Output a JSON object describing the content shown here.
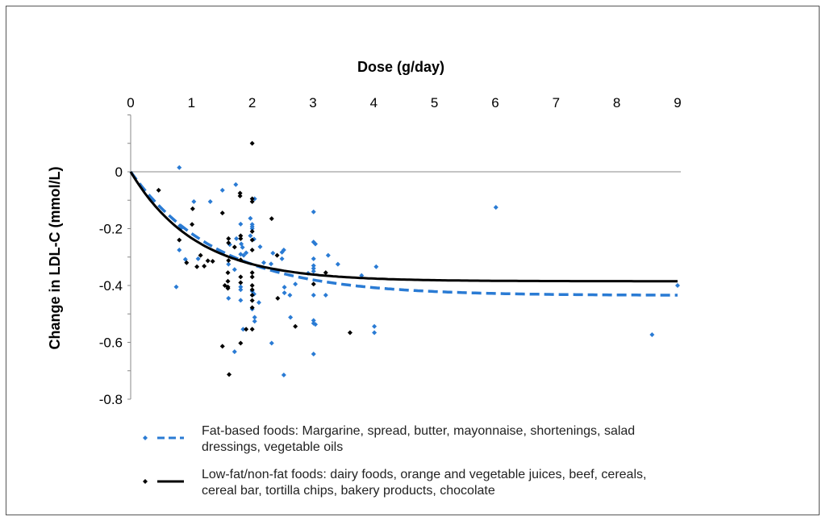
{
  "chart_data": {
    "type": "scatter",
    "xlabel": "Dose (g/day)",
    "ylabel": "Change in LDL-C (mmol/L)",
    "xlim": [
      0,
      9
    ],
    "ylim": [
      -0.8,
      0.2
    ],
    "x_ticks": [
      "0",
      "1",
      "2",
      "3",
      "4",
      "5",
      "6",
      "7",
      "8",
      "9"
    ],
    "y_ticks": [
      {
        "v": 0,
        "label": "0"
      },
      {
        "v": -0.2,
        "label": "-0.2"
      },
      {
        "v": -0.4,
        "label": "-0.4"
      },
      {
        "v": -0.6,
        "label": "-0.6"
      },
      {
        "v": -0.8,
        "label": "-0.8"
      }
    ],
    "x_axis_position": "top",
    "grid": false,
    "legend_position": "bottom",
    "series": [
      {
        "name": "Fat-based foods: Margarine, spread, butter, mayonnaise, shortenings, salad dressings, vegetable oils",
        "legend_lines": [
          "Fat-based foods: Margarine, spread, butter, mayonnaise, shortenings, salad",
          "dressings, vegetable oils"
        ],
        "color": "#2a7bd4",
        "curve_style": "dashed",
        "curve": {
          "plateau": -0.435,
          "rate": 0.69
        },
        "points": [
          [
            0.8,
            0.015
          ],
          [
            1.73,
            -0.045
          ],
          [
            1.51,
            -0.065
          ],
          [
            1.04,
            -0.105
          ],
          [
            1.31,
            -0.105
          ],
          [
            2.04,
            -0.095
          ],
          [
            1.97,
            -0.164
          ],
          [
            1.81,
            -0.184
          ],
          [
            2.0,
            -0.185
          ],
          [
            2.0,
            -0.193
          ],
          [
            2.0,
            -0.2
          ],
          [
            0.81,
            -0.19
          ],
          [
            0.82,
            -0.2
          ],
          [
            1.74,
            -0.235
          ],
          [
            1.63,
            -0.256
          ],
          [
            1.82,
            -0.254
          ],
          [
            1.84,
            -0.266
          ],
          [
            1.9,
            -0.285
          ],
          [
            1.86,
            -0.294
          ],
          [
            1.97,
            -0.225
          ],
          [
            2.03,
            -0.237
          ],
          [
            2.13,
            -0.264
          ],
          [
            0.8,
            -0.275
          ],
          [
            0.9,
            -0.308
          ],
          [
            1.11,
            -0.306
          ],
          [
            1.81,
            -0.29
          ],
          [
            1.61,
            -0.325
          ],
          [
            1.71,
            -0.344
          ],
          [
            2.19,
            -0.32
          ],
          [
            2.31,
            -0.324
          ],
          [
            2.34,
            -0.286
          ],
          [
            0.75,
            -0.405
          ],
          [
            1.81,
            -0.405
          ],
          [
            1.81,
            -0.415
          ],
          [
            2.0,
            -0.42
          ],
          [
            2.03,
            -0.43
          ],
          [
            2.11,
            -0.46
          ],
          [
            1.61,
            -0.445
          ],
          [
            1.81,
            -0.452
          ],
          [
            2.0,
            -0.483
          ],
          [
            2.04,
            -0.512
          ],
          [
            2.04,
            -0.526
          ],
          [
            1.85,
            -0.554
          ],
          [
            2.32,
            -0.603
          ],
          [
            1.71,
            -0.633
          ],
          [
            3.01,
            -0.141
          ],
          [
            3.01,
            -0.247
          ],
          [
            3.04,
            -0.254
          ],
          [
            2.52,
            -0.275
          ],
          [
            2.49,
            -0.283
          ],
          [
            2.49,
            -0.306
          ],
          [
            3.01,
            -0.306
          ],
          [
            3.25,
            -0.294
          ],
          [
            3.41,
            -0.325
          ],
          [
            3.01,
            -0.33
          ],
          [
            3.01,
            -0.34
          ],
          [
            3.01,
            -0.35
          ],
          [
            2.92,
            -0.357
          ],
          [
            4.04,
            -0.334
          ],
          [
            3.8,
            -0.365
          ],
          [
            2.71,
            -0.395
          ],
          [
            2.53,
            -0.406
          ],
          [
            2.53,
            -0.426
          ],
          [
            2.62,
            -0.434
          ],
          [
            3.01,
            -0.434
          ],
          [
            3.21,
            -0.434
          ],
          [
            2.63,
            -0.512
          ],
          [
            3.01,
            -0.523
          ],
          [
            3.01,
            -0.533
          ],
          [
            3.04,
            -0.537
          ],
          [
            4.01,
            -0.544
          ],
          [
            4.01,
            -0.566
          ],
          [
            3.01,
            -0.641
          ],
          [
            2.52,
            -0.715
          ],
          [
            6.01,
            -0.125
          ],
          [
            8.58,
            -0.573
          ],
          [
            9.0,
            -0.4
          ]
        ]
      },
      {
        "name": "Low-fat/non-fat foods: dairy foods, orange and vegetable juices, beef, cereals, cereal bar, tortilla chips, bakery products, chocolate",
        "legend_lines": [
          "Low-fat/non-fat foods: dairy foods, orange and vegetable juices, beef, cereals,",
          "cereal bar, tortilla chips, bakery products, chocolate"
        ],
        "color": "#000000",
        "curve_style": "solid",
        "curve": {
          "plateau": -0.385,
          "rate": 0.93
        },
        "points": [
          [
            0.46,
            -0.065
          ],
          [
            2.0,
            0.1
          ],
          [
            1.8,
            -0.075
          ],
          [
            1.8,
            -0.085
          ],
          [
            2.0,
            -0.095
          ],
          [
            2.0,
            -0.105
          ],
          [
            1.02,
            -0.13
          ],
          [
            1.51,
            -0.145
          ],
          [
            2.32,
            -0.165
          ],
          [
            1.01,
            -0.185
          ],
          [
            2.0,
            -0.21
          ],
          [
            1.81,
            -0.225
          ],
          [
            1.81,
            -0.235
          ],
          [
            1.61,
            -0.235
          ],
          [
            1.61,
            -0.25
          ],
          [
            0.8,
            -0.24
          ],
          [
            2.0,
            -0.24
          ],
          [
            1.71,
            -0.265
          ],
          [
            2.0,
            -0.275
          ],
          [
            1.81,
            -0.31
          ],
          [
            0.92,
            -0.32
          ],
          [
            1.09,
            -0.334
          ],
          [
            1.21,
            -0.332
          ],
          [
            1.27,
            -0.313
          ],
          [
            1.35,
            -0.315
          ],
          [
            1.15,
            -0.294
          ],
          [
            1.61,
            -0.312
          ],
          [
            2.0,
            -0.355
          ],
          [
            1.6,
            -0.355
          ],
          [
            1.6,
            -0.385
          ],
          [
            1.55,
            -0.4
          ],
          [
            1.6,
            -0.405
          ],
          [
            1.6,
            -0.41
          ],
          [
            1.81,
            -0.37
          ],
          [
            1.81,
            -0.39
          ],
          [
            2.0,
            -0.37
          ],
          [
            2.0,
            -0.4
          ],
          [
            2.0,
            -0.415
          ],
          [
            2.0,
            -0.434
          ],
          [
            2.0,
            -0.453
          ],
          [
            2.0,
            -0.478
          ],
          [
            2.0,
            -0.554
          ],
          [
            1.9,
            -0.554
          ],
          [
            2.41,
            -0.294
          ],
          [
            2.42,
            -0.445
          ],
          [
            1.51,
            -0.614
          ],
          [
            1.81,
            -0.603
          ],
          [
            1.62,
            -0.713
          ],
          [
            3.21,
            -0.355
          ],
          [
            3.01,
            -0.395
          ],
          [
            2.71,
            -0.544
          ],
          [
            3.61,
            -0.566
          ]
        ]
      }
    ]
  }
}
